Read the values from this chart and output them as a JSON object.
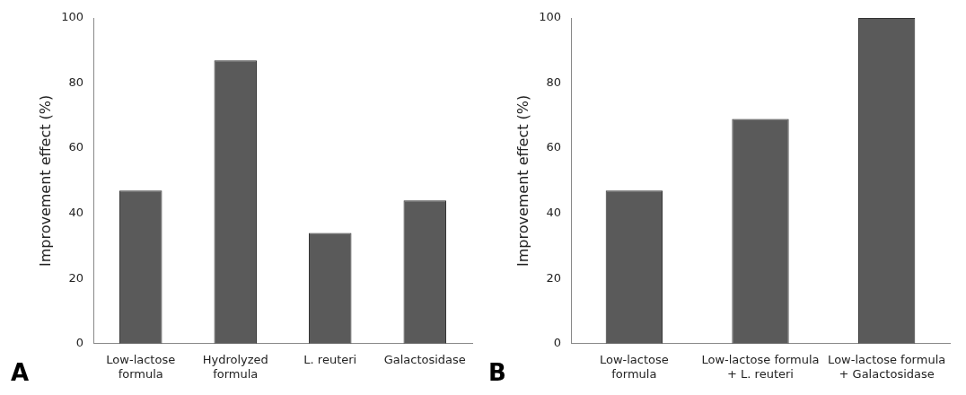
{
  "chart_data": [
    {
      "type": "bar",
      "categories": [
        "Low-lactose formula",
        "Hydrolyzed formula",
        "L. reuteri",
        "Galactosidase"
      ],
      "values": [
        47,
        87,
        34,
        44
      ],
      "color": "#5a5a5a",
      "ylabel": "Improvement effect (%)",
      "ylim": [
        0,
        100
      ],
      "yticks": [
        0,
        20,
        40,
        60,
        80,
        100
      ],
      "grid": false,
      "annotations": [
        "A"
      ]
    },
    {
      "type": "bar",
      "categories": [
        "Low-lactose formula",
        "Low-lactose formula + L. reuteri",
        "Low-lactose formula + Galactosidase"
      ],
      "values": [
        47,
        69,
        100
      ],
      "color": "#5a5a5a",
      "ylabel": "Improvement effect (%)",
      "ylim": [
        0,
        100
      ],
      "yticks": [
        0,
        20,
        40,
        60,
        80,
        100
      ],
      "grid": false,
      "annotations": [
        "B"
      ]
    }
  ]
}
